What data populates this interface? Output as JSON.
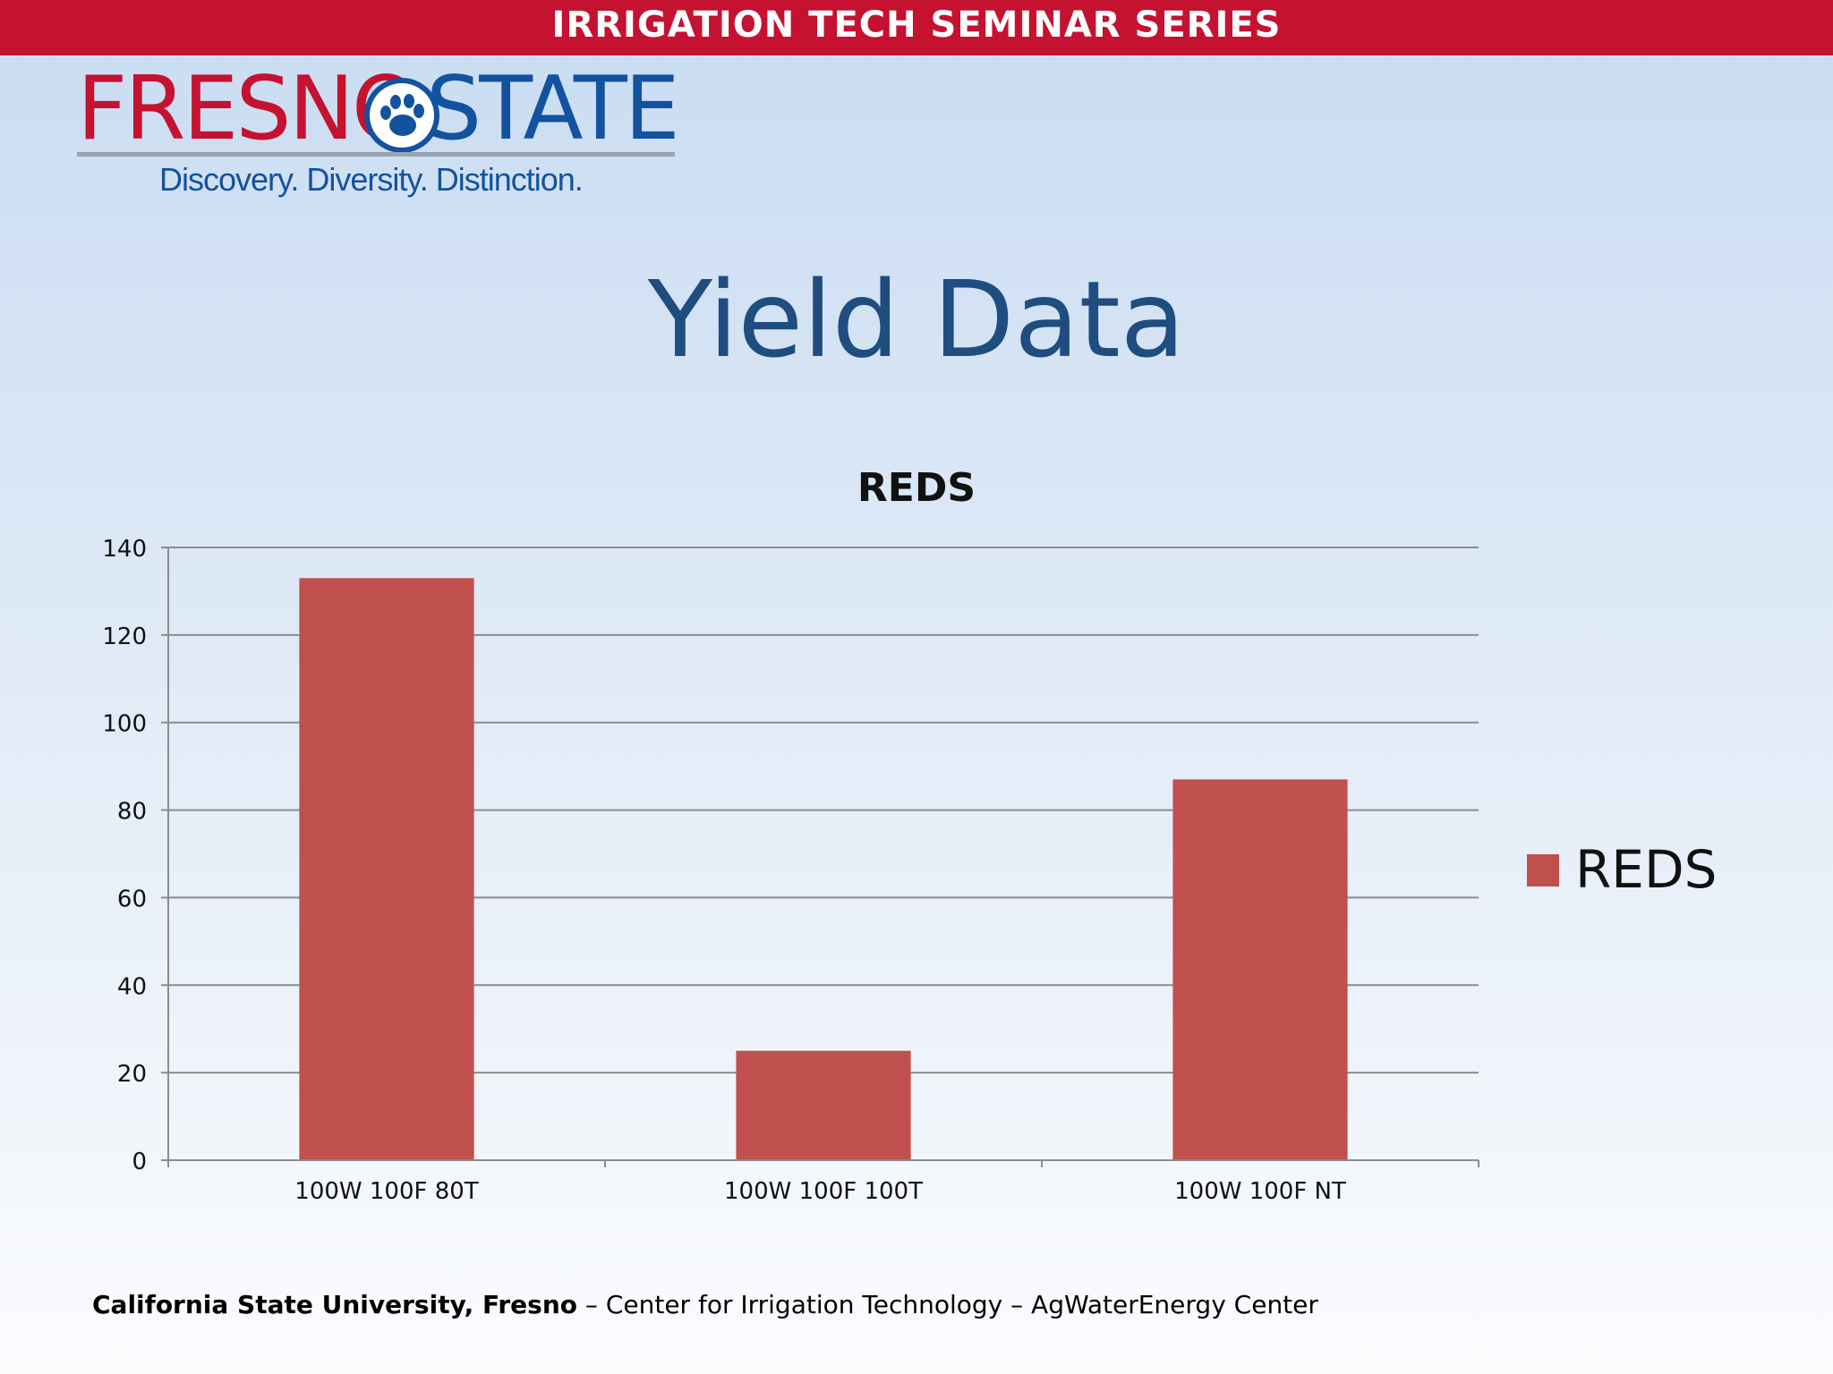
{
  "banner": {
    "title": "IRRIGATION TECH SEMINAR SERIES"
  },
  "logo": {
    "word_left": "FRESNO",
    "word_right": "STATE",
    "tagline": "Discovery. Diversity. Distinction."
  },
  "slide": {
    "title": "Yield Data"
  },
  "colors": {
    "banner_red": "#c41230",
    "brand_blue": "#13529e",
    "title_blue": "#1f4d80",
    "bar": "#c0504d"
  },
  "chart_data": {
    "type": "bar",
    "title": "REDS",
    "categories": [
      "100W 100F 80T",
      "100W 100F 100T",
      "100W 100F NT"
    ],
    "series": [
      {
        "name": "REDS",
        "values": [
          133,
          25,
          87
        ]
      }
    ],
    "ylim": [
      0,
      140
    ],
    "yticks": [
      0,
      20,
      40,
      60,
      80,
      100,
      120,
      140
    ],
    "xlabel": "",
    "ylabel": "",
    "grid": true,
    "legend": "right"
  },
  "footer": {
    "institution": "California State University, Fresno",
    "rest": " – Center for Irrigation Technology – AgWaterEnergy Center"
  }
}
